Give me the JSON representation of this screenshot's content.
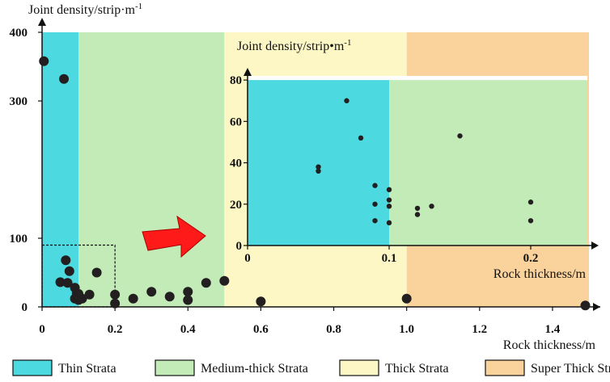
{
  "chart_data": [
    {
      "type": "scatter",
      "role": "main",
      "ylabel": "Joint density/strip·m",
      "ylabel_exponent": "-1",
      "xlabel": "Rock thickness/m",
      "xlim": [
        0,
        1.5
      ],
      "ylim": [
        0,
        400
      ],
      "x_ticks": [
        0,
        0.2,
        0.4,
        0.6,
        0.8,
        1.0,
        1.2,
        1.4
      ],
      "x_tick_labels": [
        "0",
        "0.2",
        "0.4",
        "0.6",
        "0.8",
        "1.0",
        "1.2",
        "1.4"
      ],
      "y_ticks": [
        0,
        100,
        300,
        400
      ],
      "y_tick_labels": [
        "0",
        "100",
        "300",
        "400"
      ],
      "bands": [
        {
          "label": "Thin Strata",
          "from": 0,
          "to": 0.1,
          "color": "#4dd9e0"
        },
        {
          "label": "Medium-thick Strata",
          "from": 0.1,
          "to": 0.5,
          "color": "#c2ebb8"
        },
        {
          "label": "Thick Strata",
          "from": 0.5,
          "to": 1.0,
          "color": "#fdf7c6"
        },
        {
          "label": "Super Thick Strata",
          "from": 1.0,
          "to": 1.5,
          "color": "#fad39c"
        }
      ],
      "zoom_box": {
        "x": [
          0,
          0.2
        ],
        "y": [
          0,
          90
        ]
      },
      "points": [
        [
          0.005,
          358
        ],
        [
          0.06,
          332
        ],
        [
          0.065,
          68
        ],
        [
          0.075,
          52
        ],
        [
          0.05,
          36
        ],
        [
          0.07,
          35
        ],
        [
          0.09,
          28
        ],
        [
          0.095,
          20
        ],
        [
          0.1,
          19
        ],
        [
          0.09,
          12
        ],
        [
          0.1,
          10
        ],
        [
          0.11,
          12
        ],
        [
          0.13,
          18
        ],
        [
          0.15,
          50
        ],
        [
          0.2,
          18
        ],
        [
          0.2,
          5
        ],
        [
          0.25,
          12
        ],
        [
          0.3,
          22
        ],
        [
          0.35,
          15
        ],
        [
          0.4,
          22
        ],
        [
          0.4,
          10
        ],
        [
          0.45,
          35
        ],
        [
          0.5,
          38
        ],
        [
          0.6,
          8
        ],
        [
          1.0,
          12
        ],
        [
          1.49,
          2
        ]
      ]
    },
    {
      "type": "scatter",
      "role": "inset",
      "ylabel": "Joint density/strip•m",
      "ylabel_exponent": "-1",
      "xlabel": "Rock thickness/m",
      "xlim": [
        0,
        0.24
      ],
      "ylim": [
        0,
        82
      ],
      "x_ticks": [
        0,
        0.1,
        0.2
      ],
      "x_tick_labels": [
        "0",
        "0.1",
        "0.2"
      ],
      "y_ticks": [
        0,
        20,
        40,
        60,
        80
      ],
      "y_tick_labels": [
        "0",
        "20",
        "40",
        "60",
        "80"
      ],
      "bands": [
        {
          "label": "Thin Strata",
          "from": 0,
          "to": 0.1,
          "color": "#4dd9e0"
        },
        {
          "label": "Medium-thick Strata",
          "from": 0.1,
          "to": 0.24,
          "color": "#c2ebb8"
        }
      ],
      "points": [
        [
          0.07,
          70
        ],
        [
          0.08,
          52
        ],
        [
          0.05,
          38
        ],
        [
          0.05,
          36
        ],
        [
          0.09,
          29
        ],
        [
          0.1,
          27
        ],
        [
          0.1,
          22
        ],
        [
          0.1,
          19
        ],
        [
          0.09,
          20
        ],
        [
          0.09,
          12
        ],
        [
          0.1,
          11
        ],
        [
          0.12,
          18
        ],
        [
          0.12,
          15
        ],
        [
          0.13,
          19
        ],
        [
          0.15,
          53
        ],
        [
          0.2,
          21
        ],
        [
          0.2,
          12
        ]
      ]
    }
  ],
  "legend": {
    "items": [
      {
        "label": "Thin Strata",
        "color": "#4dd9e0"
      },
      {
        "label": "Medium-thick Strata",
        "color": "#c2ebb8"
      },
      {
        "label": "Thick Strata",
        "color": "#fdf7c6"
      },
      {
        "label": "Super Thick Strata",
        "color": "#fad39c"
      }
    ]
  },
  "arrow_color": "#ff1a1a"
}
